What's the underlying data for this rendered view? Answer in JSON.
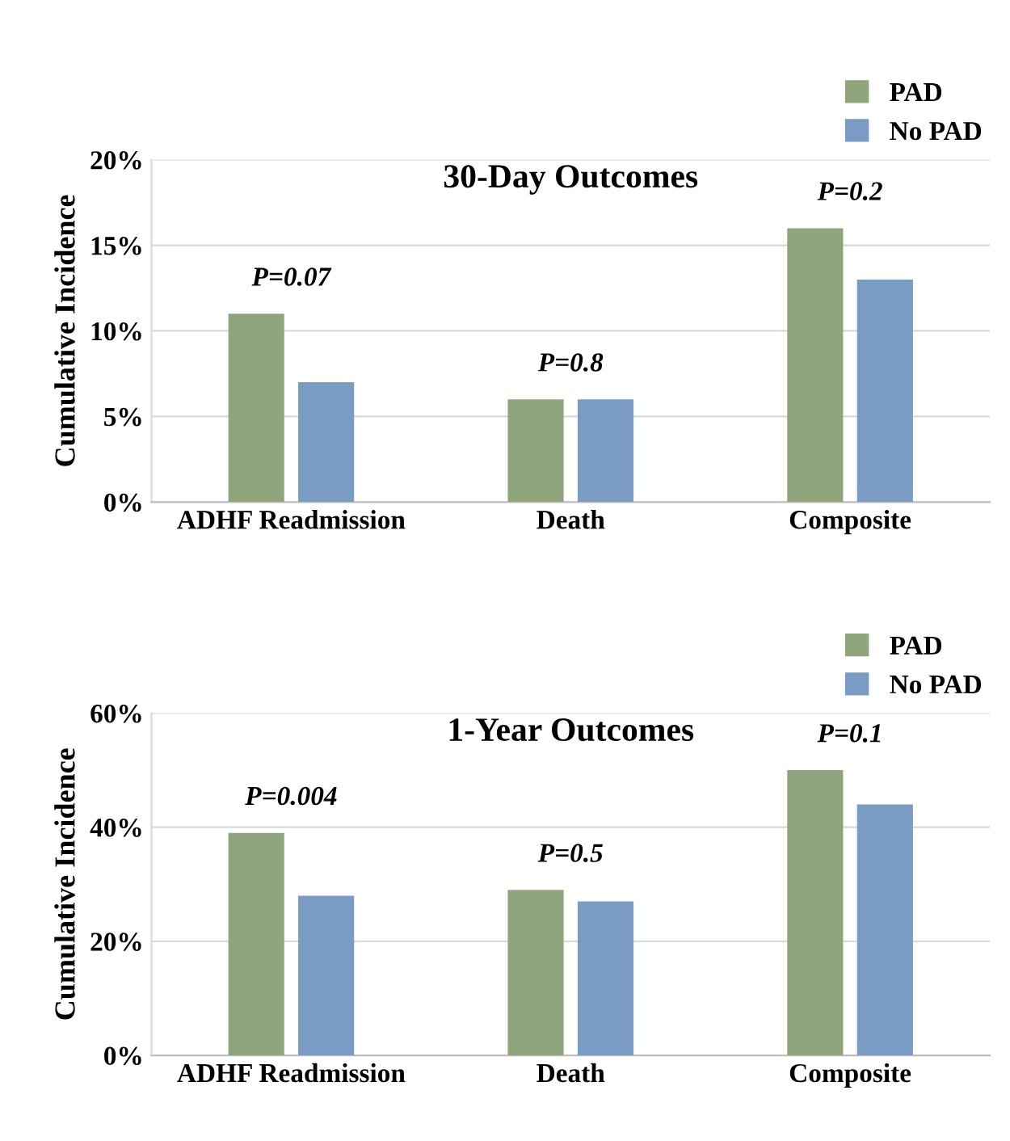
{
  "chart_data": [
    {
      "type": "bar",
      "title": "30-Day Outcomes",
      "ylabel": "Cumulative Incidence",
      "categories": [
        "ADHF Readmission",
        "Death",
        "Composite"
      ],
      "series": [
        {
          "name": "PAD",
          "color": "#8fa67c",
          "values": [
            11,
            6,
            16
          ]
        },
        {
          "name": "No PAD",
          "color": "#7a9cc4",
          "values": [
            7,
            6,
            13
          ]
        }
      ],
      "ylim": [
        0,
        20
      ],
      "yticks": [
        {
          "value": 0,
          "label": "0%"
        },
        {
          "value": 5,
          "label": "5%"
        },
        {
          "value": 10,
          "label": "10%"
        },
        {
          "value": 15,
          "label": "15%"
        },
        {
          "value": 20,
          "label": "20%"
        }
      ],
      "grid": "y",
      "legend": "top right",
      "annotations": [
        {
          "text": "P=0.07",
          "x": "ADHF Readmission",
          "y": 11
        },
        {
          "text": "P=0.8",
          "x": "Death",
          "y": 6
        },
        {
          "text": "P=0.2",
          "x": "Composite",
          "y": 16
        }
      ]
    },
    {
      "type": "bar",
      "title": "1-Year Outcomes",
      "ylabel": "Cumulative Incidence",
      "categories": [
        "ADHF Readmission",
        "Death",
        "Composite"
      ],
      "series": [
        {
          "name": "PAD",
          "color": "#8fa67c",
          "values": [
            39,
            29,
            50
          ]
        },
        {
          "name": "No PAD",
          "color": "#7a9cc4",
          "values": [
            28,
            27,
            44
          ]
        }
      ],
      "ylim": [
        0,
        60
      ],
      "yticks": [
        {
          "value": 0,
          "label": "0%"
        },
        {
          "value": 20,
          "label": "20%"
        },
        {
          "value": 40,
          "label": "40%"
        },
        {
          "value": 60,
          "label": "60%"
        }
      ],
      "grid": "y",
      "legend": "top right",
      "annotations": [
        {
          "text": "P=0.004",
          "x": "ADHF Readmission",
          "y": 39
        },
        {
          "text": "P=0.5",
          "x": "Death",
          "y": 29
        },
        {
          "text": "P=0.1",
          "x": "Composite",
          "y": 50
        }
      ]
    }
  ]
}
